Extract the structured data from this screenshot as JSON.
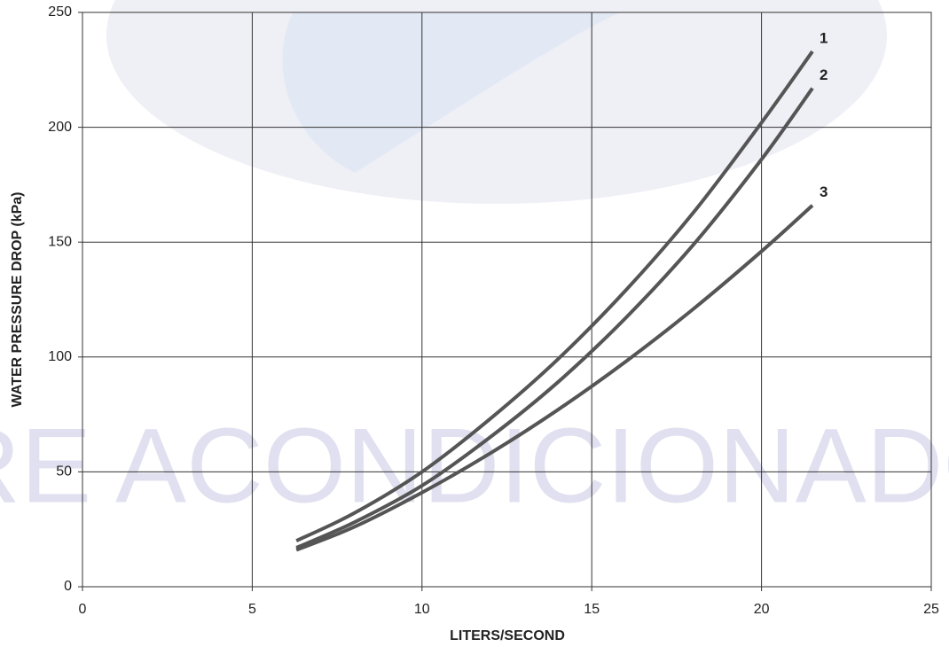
{
  "chart_data": {
    "type": "line",
    "watermark": "AIRE ACONDICIONADO",
    "x_label": "LITERS/SECOND",
    "y_label": "WATER PRESSURE DROP (kPa)",
    "xlim": [
      0,
      25
    ],
    "xticks": [
      0,
      5,
      10,
      15,
      20,
      25
    ],
    "ylim": [
      0,
      250
    ],
    "yticks": [
      0,
      50,
      100,
      150,
      200,
      250
    ],
    "grid": true,
    "x": [
      6.3,
      8,
      10,
      12,
      14,
      16,
      18,
      20,
      21.5
    ],
    "series": [
      {
        "name": "1",
        "color": "#555555",
        "values": [
          20,
          32,
          50,
          73,
          99,
          129,
          163,
          202,
          233
        ]
      },
      {
        "name": "2",
        "color": "#555555",
        "values": [
          17,
          28,
          44,
          65,
          89,
          117,
          149,
          186,
          217
        ]
      },
      {
        "name": "3",
        "color": "#555555",
        "values": [
          16,
          26,
          41,
          58,
          77,
          98,
          121,
          146,
          166
        ]
      }
    ]
  }
}
